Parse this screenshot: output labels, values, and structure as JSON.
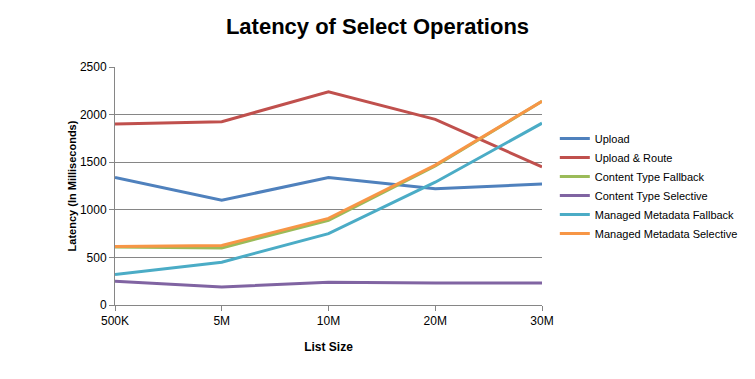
{
  "chart_data": {
    "type": "line",
    "title": "Latency of Select Operations",
    "x_label": "List Size",
    "y_label": "Latency (In Milliseconds)",
    "categories": [
      "500K",
      "5M",
      "10M",
      "20M",
      "30M"
    ],
    "series": [
      {
        "name": "Upload",
        "color": "#4f81bd",
        "values": [
          1340,
          1100,
          1340,
          1220,
          1270
        ]
      },
      {
        "name": "Upload & Route",
        "color": "#c0504d",
        "values": [
          1900,
          1925,
          2240,
          1950,
          1450
        ]
      },
      {
        "name": "Content Type Fallback",
        "color": "#9bbb59",
        "values": [
          610,
          600,
          890,
          1460,
          2140
        ]
      },
      {
        "name": "Content Type Selective",
        "color": "#8064a2",
        "values": [
          250,
          190,
          240,
          230,
          230
        ]
      },
      {
        "name": "Managed Metadata Fallback",
        "color": "#4bacc6",
        "values": [
          320,
          450,
          750,
          1290,
          1910
        ]
      },
      {
        "name": "Managed Metadata Selective",
        "color": "#f79646",
        "values": [
          615,
          625,
          910,
          1470,
          2140
        ]
      }
    ],
    "ylim": [
      0,
      2500
    ],
    "yticks": [
      0,
      500,
      1000,
      1500,
      2000,
      2500
    ],
    "grid": true,
    "legend": "right"
  }
}
